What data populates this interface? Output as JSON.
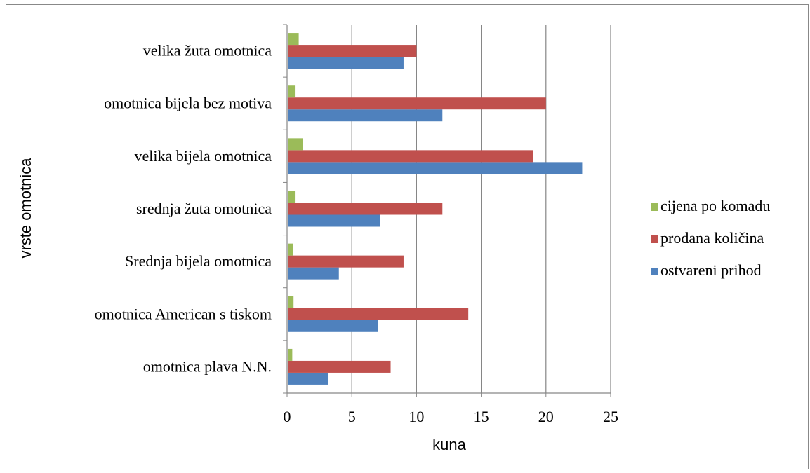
{
  "chart_data": {
    "type": "bar",
    "orientation": "horizontal",
    "title": "",
    "xlabel": "kuna",
    "ylabel": "vrste omotnica",
    "xlim": [
      0,
      25
    ],
    "xticks": [
      0,
      5,
      10,
      15,
      20,
      25
    ],
    "grid": "vertical",
    "legend_position": "right",
    "categories": [
      "omotnica plava N.N.",
      "omotnica American s tiskom",
      "Srednja bijela omotnica",
      "srednja žuta omotnica",
      "velika bijela omotnica",
      "omotnica bijela bez motiva",
      "velika žuta omotnica"
    ],
    "series": [
      {
        "name": "ostvareni prihod",
        "color": "#4F81BD",
        "values": [
          3.2,
          7.0,
          4.0,
          7.2,
          22.8,
          12.0,
          9.0
        ]
      },
      {
        "name": "prodana količina",
        "color": "#C0504D",
        "values": [
          8,
          14,
          9,
          12,
          19,
          20,
          10
        ]
      },
      {
        "name": "cijena po komadu",
        "color": "#9BBB59",
        "values": [
          0.4,
          0.5,
          0.45,
          0.6,
          1.2,
          0.6,
          0.9
        ]
      }
    ],
    "legend_order": [
      "cijena po komadu",
      "prodana količina",
      "ostvareni prihod"
    ]
  }
}
